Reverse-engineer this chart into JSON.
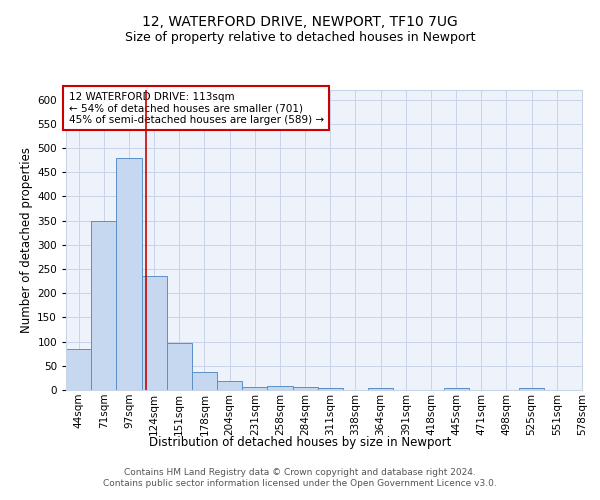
{
  "title_line1": "12, WATERFORD DRIVE, NEWPORT, TF10 7UG",
  "title_line2": "Size of property relative to detached houses in Newport",
  "xlabel": "Distribution of detached houses by size in Newport",
  "ylabel": "Number of detached properties",
  "bar_labels": [
    "44sqm",
    "71sqm",
    "97sqm",
    "124sqm",
    "151sqm",
    "178sqm",
    "204sqm",
    "231sqm",
    "258sqm",
    "284sqm",
    "311sqm",
    "338sqm",
    "364sqm",
    "391sqm",
    "418sqm",
    "445sqm",
    "471sqm",
    "498sqm",
    "525sqm",
    "551sqm",
    "578sqm"
  ],
  "bar_heights": [
    85,
    350,
    480,
    235,
    97,
    37,
    18,
    7,
    8,
    7,
    5,
    0,
    5,
    0,
    0,
    5,
    0,
    0,
    5,
    0
  ],
  "bar_color": "#c5d8f0",
  "bar_edge_color": "#5b8fc9",
  "grid_color": "#c8d4e8",
  "background_color": "#eef2fb",
  "red_line_x": 2.69,
  "annotation_text": "12 WATERFORD DRIVE: 113sqm\n← 54% of detached houses are smaller (701)\n45% of semi-detached houses are larger (589) →",
  "annotation_box_color": "white",
  "annotation_border_color": "#cc0000",
  "ylim": [
    0,
    620
  ],
  "yticks": [
    0,
    50,
    100,
    150,
    200,
    250,
    300,
    350,
    400,
    450,
    500,
    550,
    600
  ],
  "footer_text": "Contains HM Land Registry data © Crown copyright and database right 2024.\nContains public sector information licensed under the Open Government Licence v3.0.",
  "title_fontsize": 10,
  "subtitle_fontsize": 9,
  "axis_label_fontsize": 8.5,
  "tick_fontsize": 7.5,
  "annotation_fontsize": 7.5,
  "footer_fontsize": 6.5
}
